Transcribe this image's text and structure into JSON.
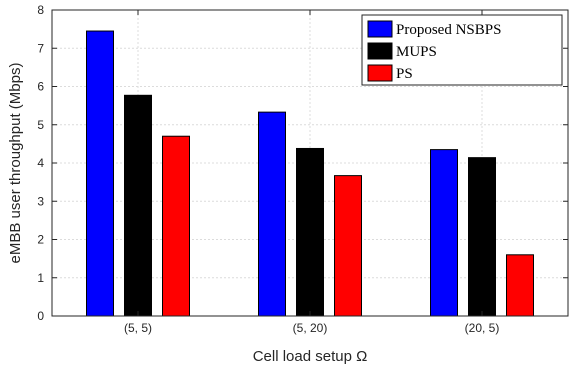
{
  "chart_data": {
    "type": "bar",
    "categories": [
      "(5, 5)",
      "(5, 20)",
      "(20, 5)"
    ],
    "series": [
      {
        "name": "Proposed NSBPS",
        "color": "#0000ff",
        "values": [
          7.45,
          5.33,
          4.35
        ]
      },
      {
        "name": "MUPS",
        "color": "#000000",
        "values": [
          5.77,
          4.38,
          4.14
        ]
      },
      {
        "name": "PS",
        "color": "#ff0000",
        "values": [
          4.7,
          3.67,
          1.6
        ]
      }
    ],
    "xlabel": "Cell load setup Ω",
    "ylabel": "eMBB user throughput (Mbps)",
    "ylim": [
      0,
      8
    ],
    "yticks": [
      0,
      1,
      2,
      3,
      4,
      5,
      6,
      7,
      8
    ],
    "grid": true,
    "legend_position": "top-right"
  }
}
